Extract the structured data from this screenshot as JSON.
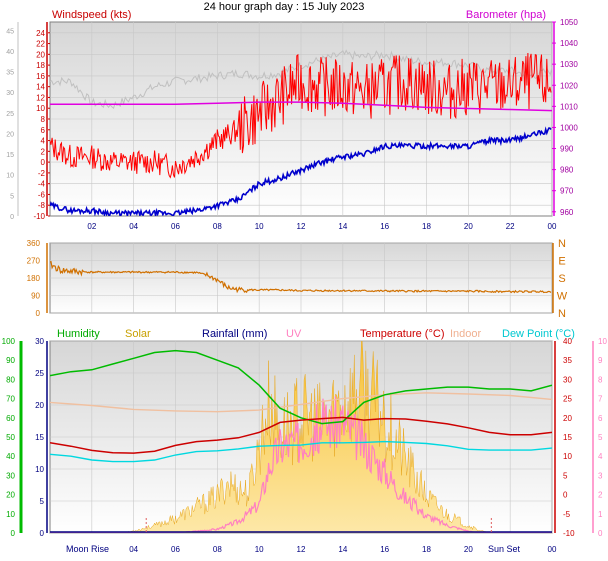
{
  "title": "24 hour graph day : 15 July 2023",
  "colors": {
    "wind": "#ff0000",
    "windAxis": "#c80000",
    "gust": "#c0c0c0",
    "avgWind": "#0000cc",
    "baro": "#e000e0",
    "dir": "#d07000",
    "humidity": "#00bb00",
    "solar": "#f3c23a",
    "rain": "#000080",
    "uv": "#ff80c0",
    "temp": "#cc0000",
    "indoor": "#f0c0a0",
    "dew": "#00d8e0",
    "timeAxis": "#000080"
  },
  "time_ticks": [
    "02",
    "04",
    "06",
    "08",
    "10",
    "12",
    "14",
    "16",
    "18",
    "20",
    "22",
    "00"
  ],
  "bottom_time_ticks": [
    "04",
    "06",
    "08",
    "10",
    "12",
    "14",
    "16",
    "18",
    "20",
    "00"
  ],
  "events": {
    "moon_rise": "Moon Rise",
    "sun_set": "Sun Set"
  },
  "chart_data": [
    {
      "type": "line",
      "id": "wind-pressure",
      "left_axis_title": "Windspeed (kts)",
      "right_axis_title": "Barometer (hpa)",
      "left_outer_ticks": [
        0,
        5,
        10,
        15,
        20,
        25,
        30,
        35,
        40,
        45
      ],
      "left_inner_ticks": [
        -10,
        -8,
        -6,
        -4,
        -2,
        0,
        2,
        4,
        6,
        8,
        10,
        12,
        14,
        16,
        18,
        20,
        22,
        24
      ],
      "right_ticks": [
        960,
        970,
        980,
        990,
        1000,
        1010,
        1020,
        1030,
        1040,
        1050
      ],
      "ylim_left": [
        -10,
        26
      ],
      "ylim_right": [
        958,
        1050
      ],
      "series": [
        {
          "key": "gust",
          "x": [
            0,
            1,
            2,
            3,
            4,
            5,
            6,
            7,
            8,
            9,
            10,
            11,
            12,
            13,
            14,
            15,
            16,
            17,
            18,
            19,
            20,
            21,
            22,
            23,
            24
          ],
          "values": [
            15,
            15,
            11,
            10.5,
            12,
            14,
            15,
            15.5,
            16,
            16.5,
            16,
            16.5,
            18,
            19,
            20,
            19.5,
            20,
            19,
            18.5,
            18.5,
            18,
            17,
            17,
            16,
            17
          ]
        },
        {
          "key": "wind",
          "x": [
            0,
            1,
            2,
            3,
            4,
            5,
            6,
            7,
            8,
            9,
            10,
            11,
            12,
            13,
            14,
            15,
            16,
            17,
            18,
            19,
            20,
            21,
            22,
            23,
            24
          ],
          "values": [
            3,
            1,
            1,
            0,
            0,
            0,
            -1,
            1,
            4,
            6,
            9,
            12,
            15,
            14,
            14,
            13,
            14,
            15,
            14,
            13,
            14,
            14,
            14,
            15,
            14
          ]
        },
        {
          "key": "avgWind",
          "x": [
            0,
            1,
            2,
            3,
            4,
            5,
            6,
            7,
            8,
            9,
            10,
            11,
            12,
            13,
            14,
            15,
            16,
            17,
            18,
            19,
            20,
            21,
            22,
            23,
            24
          ],
          "values": [
            -8,
            -9,
            -9,
            -9.5,
            -9.5,
            -9.5,
            -9.5,
            -9,
            -8,
            -7,
            -4,
            -3,
            -1.5,
            0,
            1,
            1.5,
            3,
            3,
            3,
            3,
            3,
            4,
            4,
            5,
            6
          ]
        },
        {
          "key": "baro",
          "x": [
            0,
            2,
            4,
            6,
            8,
            10,
            12,
            14,
            16,
            18,
            20,
            22,
            24
          ],
          "values": [
            1011,
            1011,
            1011,
            1011,
            1011.5,
            1012,
            1012,
            1011.5,
            1010.5,
            1009.5,
            1009,
            1008.5,
            1008
          ]
        }
      ]
    },
    {
      "type": "line",
      "id": "wind-direction",
      "left_ticks": [
        0,
        90,
        180,
        270,
        360
      ],
      "right_labels": [
        "N",
        "W",
        "S",
        "E",
        "N"
      ],
      "ylim": [
        0,
        360
      ],
      "series": [
        {
          "key": "dir",
          "x": [
            0,
            0.5,
            1,
            1.5,
            2,
            4,
            6,
            7,
            7.5,
            8,
            8.5,
            9,
            10,
            11,
            12,
            14,
            16,
            18,
            20,
            22,
            24
          ],
          "values": [
            250,
            220,
            215,
            212,
            210,
            210,
            210,
            208,
            195,
            170,
            130,
            120,
            118,
            118,
            115,
            115,
            113,
            112,
            112,
            110,
            110
          ]
        }
      ]
    },
    {
      "type": "line",
      "id": "temperature-humidity",
      "legend": [
        "Humidity",
        "Solar",
        "Rainfall (mm)",
        "UV",
        "Temperature (°C)",
        "Indoor",
        "Dew Point (°C)"
      ],
      "humidity_ticks": [
        0,
        10,
        20,
        30,
        40,
        50,
        60,
        70,
        80,
        90,
        100
      ],
      "rain_ticks": [
        0,
        5,
        10,
        15,
        20,
        25,
        30
      ],
      "temp_ticks": [
        -10,
        -5,
        0,
        5,
        10,
        15,
        20,
        25,
        30,
        35,
        40
      ],
      "uv_ticks": [
        0,
        1,
        2,
        3,
        4,
        5,
        6,
        7,
        8,
        9,
        10
      ],
      "ylim_humidity": [
        0,
        100
      ],
      "ylim_temp": [
        -10,
        40
      ],
      "ylim_uv": [
        0,
        10
      ],
      "series": [
        {
          "key": "humidity",
          "x": [
            0,
            1,
            2,
            3,
            4,
            5,
            6,
            7,
            8,
            9,
            10,
            11,
            12,
            13,
            14,
            15,
            16,
            17,
            18,
            19,
            20,
            21,
            22,
            23,
            24
          ],
          "values": [
            82,
            84,
            85,
            88,
            91,
            94,
            95,
            94,
            90,
            86,
            77,
            65,
            60,
            57,
            58,
            68,
            72,
            74,
            75,
            76,
            76,
            75,
            75,
            74,
            77
          ]
        },
        {
          "key": "temp",
          "x": [
            0,
            1,
            2,
            3,
            4,
            5,
            6,
            7,
            8,
            9,
            10,
            11,
            12,
            13,
            14,
            15,
            16,
            17,
            18,
            19,
            20,
            21,
            22,
            23,
            24
          ],
          "values": [
            13.5,
            12.6,
            11.5,
            10.9,
            10.8,
            11.3,
            12.8,
            13.8,
            14.2,
            14.8,
            16.2,
            18.8,
            19.4,
            19.8,
            20.1,
            19.4,
            19.8,
            19.7,
            19.1,
            18.4,
            17.4,
            16.2,
            15.6,
            15.6,
            16.2
          ]
        },
        {
          "key": "indoor",
          "x": [
            0,
            2,
            4,
            6,
            8,
            10,
            12,
            14,
            16,
            18,
            20,
            22,
            24
          ],
          "values": [
            24,
            23.2,
            22.2,
            21.8,
            21.6,
            22,
            23.5,
            25,
            26,
            26.5,
            26.2,
            25.8,
            24.8
          ]
        },
        {
          "key": "dew",
          "x": [
            0,
            1,
            2,
            3,
            4,
            5,
            6,
            7,
            8,
            9,
            10,
            11,
            12,
            13,
            14,
            15,
            16,
            17,
            18,
            19,
            20,
            21,
            22,
            23,
            24
          ],
          "values": [
            10.5,
            10,
            9,
            8.6,
            8.6,
            9,
            10.3,
            11.2,
            11.4,
            11.9,
            12.6,
            12.8,
            12.9,
            13.5,
            13.5,
            13.6,
            13.8,
            13.6,
            13.3,
            12.7,
            11.8,
            11.6,
            11.6,
            11.6,
            12.1
          ]
        },
        {
          "key": "solar",
          "x": [
            0,
            3.5,
            4,
            5,
            6,
            7,
            8,
            8.5,
            9,
            9.5,
            10,
            10.5,
            11,
            12,
            13,
            14,
            15,
            16,
            17,
            18,
            19,
            20,
            20.5,
            21,
            24
          ],
          "values": [
            0,
            0,
            0.3,
            1,
            2,
            3.5,
            5,
            7,
            6,
            5.5,
            12,
            18,
            14,
            16,
            15,
            18,
            20,
            16,
            10,
            5,
            2.5,
            1,
            0.4,
            0,
            0
          ]
        },
        {
          "key": "uv",
          "x": [
            0,
            4,
            6,
            8,
            9,
            10,
            10.5,
            11,
            12,
            13,
            14,
            15,
            16,
            17,
            18,
            19,
            20,
            20.5,
            21,
            24
          ],
          "values": [
            0,
            0,
            0,
            0.2,
            0.6,
            1.5,
            3.5,
            4.5,
            4.8,
            5.6,
            5.8,
            4.6,
            3.2,
            1.8,
            0.9,
            0.4,
            0.1,
            0,
            0,
            0
          ]
        }
      ]
    }
  ]
}
